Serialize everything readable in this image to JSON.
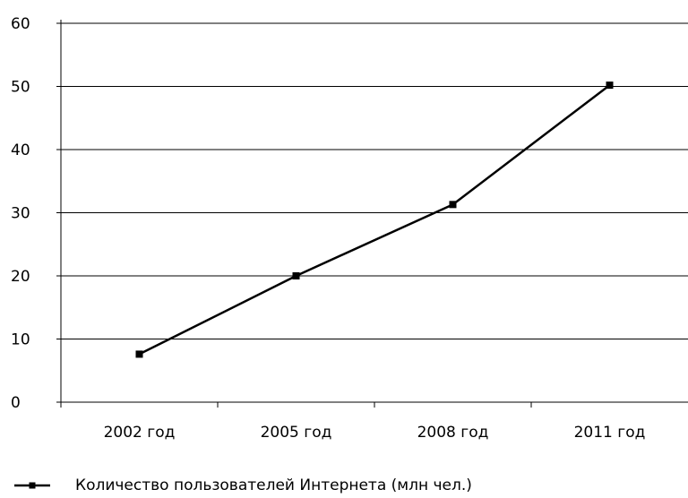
{
  "chart_data": {
    "type": "line",
    "categories": [
      "2002  год",
      "2005  год",
      "2008  год",
      "2011  год"
    ],
    "series": [
      {
        "name": "Количество  пользователей  Интернета  (млн  чел.)",
        "values": [
          7.6,
          20.0,
          31.3,
          50.2
        ]
      }
    ],
    "ylim": [
      0,
      60
    ],
    "yticks": [
      "0",
      "10",
      "20",
      "30",
      "40",
      "50",
      "60"
    ],
    "grid": true,
    "legend": "bottom-left",
    "line_color": "#000000",
    "marker": "square"
  }
}
